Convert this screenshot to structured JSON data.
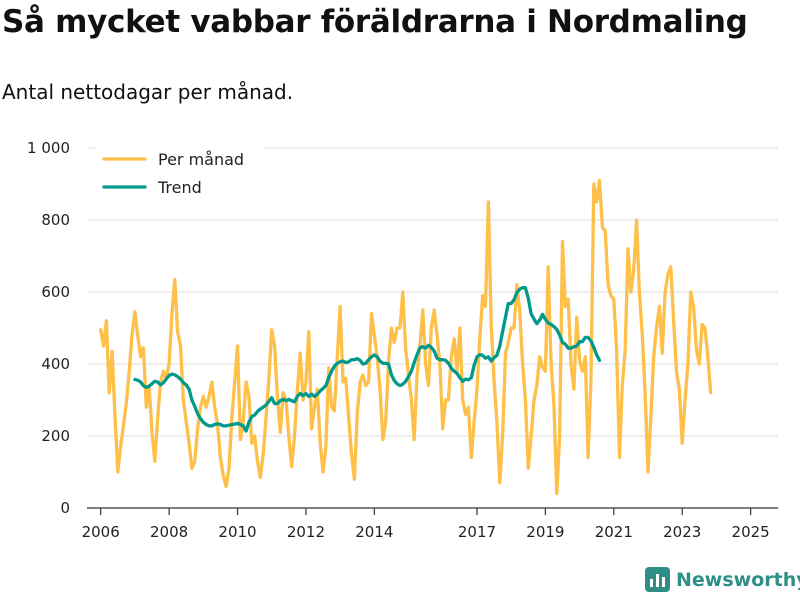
{
  "title": "Så mycket vabbar föräldrarna i Nordmaling",
  "subtitle": "Antal nettodagar per månad.",
  "brand": {
    "name": "Newsworthy",
    "icon": "newsworthy-logo-icon"
  },
  "colors": {
    "monthly": "#ffc04a",
    "trend": "#00998a",
    "grid": "#dddddd",
    "axis": "#333333",
    "brand": "#2f8f86"
  },
  "chart_data": {
    "type": "line",
    "title": "Så mycket vabbar föräldrarna i Nordmaling",
    "subtitle": "Antal nettodagar per månad.",
    "xlabel": "",
    "ylabel": "",
    "xlim": [
      2005.6,
      2025.8
    ],
    "ylim": [
      0,
      1000
    ],
    "yticks": [
      0,
      200,
      400,
      600,
      800,
      1000
    ],
    "ytick_labels": [
      "0",
      "200",
      "400",
      "600",
      "800",
      "1 000"
    ],
    "xticks": [
      2006,
      2008,
      2010,
      2012,
      2014,
      2017,
      2019,
      2021,
      2023,
      2025
    ],
    "xtick_labels": [
      "2006",
      "2008",
      "2010",
      "2012",
      "2014",
      "2017",
      "2019",
      "2021",
      "2023",
      "2025"
    ],
    "legend": {
      "position": "top-left",
      "entries": [
        "Per månad",
        "Trend"
      ]
    },
    "grid": true,
    "series": [
      {
        "name": "Per månad",
        "color": "#ffc04a",
        "x_start": 2006.0,
        "x_step": 0.08333,
        "values": [
          495,
          450,
          520,
          320,
          435,
          260,
          100,
          170,
          230,
          290,
          380,
          480,
          545,
          480,
          420,
          445,
          280,
          340,
          210,
          130,
          250,
          350,
          380,
          360,
          400,
          540,
          635,
          490,
          450,
          300,
          240,
          180,
          110,
          130,
          220,
          280,
          310,
          280,
          310,
          350,
          280,
          230,
          140,
          90,
          60,
          110,
          250,
          350,
          450,
          190,
          240,
          350,
          310,
          180,
          200,
          130,
          85,
          150,
          250,
          360,
          495,
          450,
          310,
          210,
          320,
          300,
          200,
          115,
          200,
          330,
          430,
          300,
          350,
          490,
          220,
          280,
          330,
          180,
          100,
          170,
          390,
          280,
          270,
          420,
          560,
          350,
          360,
          250,
          150,
          80,
          260,
          350,
          370,
          340,
          350,
          540,
          480,
          420,
          330,
          190,
          240,
          410,
          500,
          460,
          500,
          500,
          600,
          440,
          370,
          300,
          190,
          370,
          450,
          550,
          400,
          340,
          500,
          550,
          480,
          400,
          220,
          300,
          300,
          420,
          470,
          380,
          500,
          300,
          260,
          280,
          140,
          240,
          330,
          470,
          590,
          560,
          850,
          510,
          350,
          240,
          70,
          200,
          430,
          460,
          500,
          500,
          620,
          550,
          400,
          300,
          110,
          200,
          300,
          340,
          420,
          390,
          380,
          670,
          400,
          290,
          40,
          200,
          740,
          560,
          580,
          400,
          330,
          530,
          410,
          380,
          420,
          140,
          360,
          900,
          850,
          910,
          780,
          770,
          620,
          590,
          580,
          440,
          140,
          340,
          440,
          720,
          600,
          660,
          800,
          600,
          480,
          320,
          100,
          250,
          420,
          500,
          560,
          430,
          600,
          650,
          670,
          520,
          380,
          330,
          180,
          300,
          400,
          600,
          560,
          440,
          400,
          510,
          500,
          420,
          320
        ]
      },
      {
        "name": "Trend",
        "color": "#00998a",
        "x_start": 2007.0,
        "x_step": 0.08333,
        "values": [
          357,
          355,
          350,
          340,
          335,
          338,
          345,
          352,
          350,
          342,
          348,
          358,
          368,
          372,
          370,
          365,
          358,
          348,
          342,
          330,
          300,
          282,
          262,
          248,
          238,
          232,
          228,
          228,
          232,
          234,
          232,
          228,
          228,
          230,
          232,
          233,
          235,
          232,
          228,
          214,
          238,
          254,
          258,
          268,
          275,
          280,
          286,
          296,
          306,
          290,
          290,
          298,
          302,
          298,
          302,
          298,
          295,
          310,
          318,
          312,
          318,
          310,
          316,
          310,
          316,
          325,
          332,
          340,
          362,
          380,
          394,
          402,
          406,
          408,
          404,
          406,
          412,
          412,
          415,
          410,
          400,
          402,
          412,
          420,
          425,
          420,
          408,
          402,
          402,
          400,
          370,
          354,
          345,
          340,
          344,
          352,
          365,
          380,
          404,
          426,
          445,
          448,
          444,
          452,
          446,
          436,
          416,
          412,
          412,
          410,
          402,
          388,
          380,
          374,
          362,
          352,
          358,
          356,
          362,
          396,
          420,
          426,
          424,
          416,
          420,
          408,
          418,
          424,
          450,
          490,
          530,
          568,
          568,
          578,
          598,
          608,
          612,
          612,
          582,
          540,
          525,
          512,
          522,
          538,
          524,
          514,
          510,
          504,
          496,
          480,
          460,
          455,
          444,
          444,
          448,
          450,
          462,
          462,
          474,
          474,
          464,
          446,
          425,
          410
        ]
      }
    ]
  }
}
